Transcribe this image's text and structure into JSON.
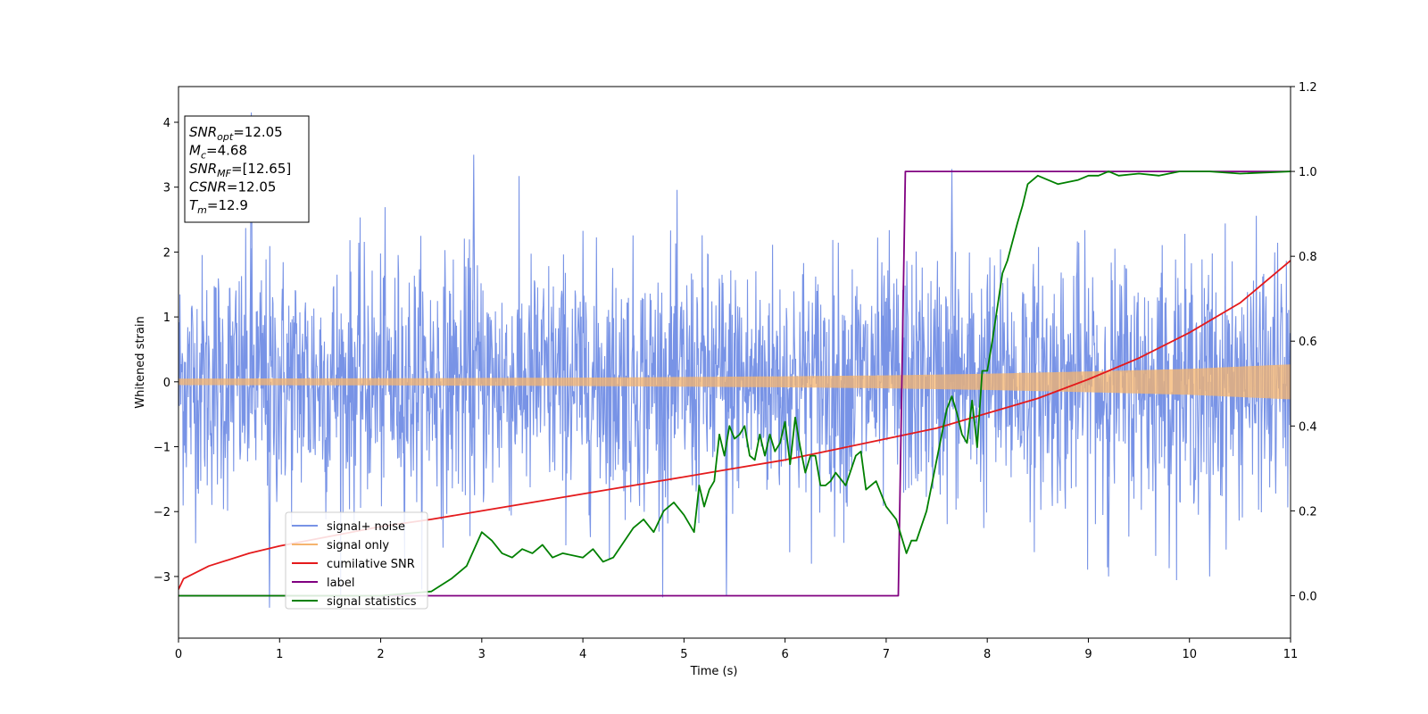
{
  "chart_data": {
    "type": "line",
    "xlabel": "Time (s)",
    "ylabel": "Whitened strain",
    "xlim": [
      0,
      11
    ],
    "ylim": [
      -3.95,
      4.55
    ],
    "y2lim": [
      -0.1,
      1.2
    ],
    "xticks": [
      0,
      1,
      2,
      3,
      4,
      5,
      6,
      7,
      8,
      9,
      10,
      11
    ],
    "yticks": [
      -3,
      -2,
      -1,
      0,
      1,
      2,
      3,
      4
    ],
    "y2ticks": [
      "0.0",
      "0.2",
      "0.4",
      "0.6",
      "0.8",
      "1.0",
      "1.2"
    ],
    "legend_position": "lower-left",
    "info_box": {
      "position": "top-left",
      "lines": [
        {
          "sym": "SNR",
          "sub": "opt",
          "val": "=12.05"
        },
        {
          "sym": "M",
          "sub": "c",
          "val": "=4.68"
        },
        {
          "sym": "SNR",
          "sub": "MF",
          "val": "=[12.65]"
        },
        {
          "sym": "CSNR",
          "sub": "",
          "val": "=12.05"
        },
        {
          "sym": "T",
          "sub": "m",
          "val": "=12.9"
        }
      ]
    },
    "series": [
      {
        "name": "signal+ noise",
        "axis": "left",
        "color": "#7893e6",
        "kind": "noise",
        "amplitude_std": 0.95,
        "peaks": [
          [
            0.72,
            4.15
          ],
          [
            2.92,
            3.5
          ],
          [
            7.65,
            3.28
          ],
          [
            0.9,
            -3.48
          ],
          [
            5.42,
            -3.3
          ],
          [
            9.2,
            -3.0
          ],
          [
            10.2,
            -3.0
          ]
        ]
      },
      {
        "name": "signal only",
        "axis": "left",
        "color": "#f5b46e",
        "kind": "envelope",
        "x": [
          0,
          2,
          4,
          6,
          7,
          8,
          9,
          10,
          11
        ],
        "amplitude": [
          0.05,
          0.055,
          0.065,
          0.085,
          0.1,
          0.125,
          0.16,
          0.2,
          0.27
        ]
      },
      {
        "name": "cumilative SNR",
        "axis": "right",
        "color": "#e41a1c",
        "x": [
          0,
          0.05,
          0.3,
          0.7,
          1,
          1.5,
          2,
          2.5,
          3,
          3.5,
          4,
          4.5,
          5,
          5.5,
          6,
          6.5,
          7,
          7.5,
          8,
          8.5,
          9,
          9.5,
          10,
          10.5,
          11
        ],
        "values": [
          0.015,
          0.04,
          0.07,
          0.1,
          0.117,
          0.14,
          0.163,
          0.18,
          0.2,
          0.22,
          0.24,
          0.26,
          0.28,
          0.3,
          0.32,
          0.345,
          0.37,
          0.395,
          0.43,
          0.465,
          0.51,
          0.56,
          0.62,
          0.69,
          0.79
        ]
      },
      {
        "name": "label",
        "axis": "right",
        "color": "#800080",
        "x": [
          0,
          7.12,
          7.19,
          11
        ],
        "values": [
          0.0,
          0.0,
          1.0,
          1.0
        ]
      },
      {
        "name": "signal statistics",
        "axis": "right",
        "color": "#008000",
        "x": [
          0,
          2.0,
          2.5,
          2.7,
          2.85,
          3.0,
          3.1,
          3.2,
          3.3,
          3.4,
          3.5,
          3.6,
          3.7,
          3.8,
          4.0,
          4.1,
          4.2,
          4.3,
          4.5,
          4.6,
          4.7,
          4.8,
          4.9,
          5.0,
          5.1,
          5.15,
          5.2,
          5.25,
          5.3,
          5.35,
          5.4,
          5.45,
          5.5,
          5.55,
          5.6,
          5.65,
          5.7,
          5.75,
          5.8,
          5.85,
          5.9,
          5.95,
          6.0,
          6.05,
          6.1,
          6.15,
          6.2,
          6.25,
          6.3,
          6.35,
          6.4,
          6.45,
          6.5,
          6.6,
          6.7,
          6.75,
          6.8,
          6.9,
          7.0,
          7.1,
          7.2,
          7.25,
          7.3,
          7.4,
          7.5,
          7.6,
          7.65,
          7.7,
          7.75,
          7.8,
          7.85,
          7.9,
          7.95,
          8.0,
          8.05,
          8.1,
          8.15,
          8.2,
          8.3,
          8.35,
          8.4,
          8.5,
          8.6,
          8.7,
          8.9,
          9.0,
          9.1,
          9.2,
          9.3,
          9.5,
          9.7,
          9.9,
          10.2,
          10.5,
          11
        ],
        "values": [
          0.0,
          0.0,
          0.01,
          0.04,
          0.07,
          0.15,
          0.13,
          0.1,
          0.09,
          0.11,
          0.1,
          0.12,
          0.09,
          0.1,
          0.09,
          0.11,
          0.08,
          0.09,
          0.16,
          0.18,
          0.15,
          0.2,
          0.22,
          0.19,
          0.15,
          0.26,
          0.21,
          0.25,
          0.27,
          0.38,
          0.33,
          0.4,
          0.37,
          0.38,
          0.4,
          0.33,
          0.32,
          0.38,
          0.33,
          0.38,
          0.34,
          0.36,
          0.41,
          0.31,
          0.42,
          0.35,
          0.29,
          0.33,
          0.33,
          0.26,
          0.26,
          0.27,
          0.29,
          0.26,
          0.33,
          0.34,
          0.25,
          0.27,
          0.21,
          0.18,
          0.1,
          0.13,
          0.13,
          0.2,
          0.32,
          0.44,
          0.47,
          0.43,
          0.38,
          0.36,
          0.46,
          0.35,
          0.53,
          0.53,
          0.6,
          0.68,
          0.76,
          0.79,
          0.88,
          0.92,
          0.97,
          0.99,
          0.98,
          0.97,
          0.98,
          0.99,
          0.99,
          1.0,
          0.99,
          0.995,
          0.99,
          1.0,
          1.0,
          0.995,
          1.0
        ]
      }
    ]
  }
}
